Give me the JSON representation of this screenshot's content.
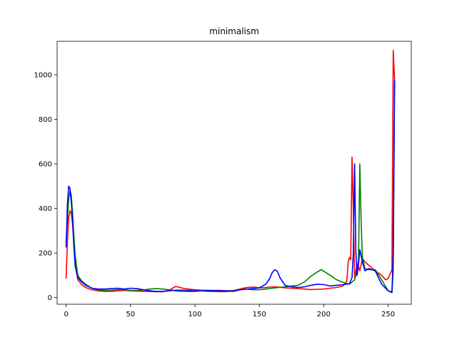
{
  "chart_data": {
    "type": "line",
    "title": "minimalism",
    "xlabel": "",
    "ylabel": "",
    "xlim": [
      -7,
      268
    ],
    "ylim": [
      -30,
      1150
    ],
    "xticks": [
      0,
      50,
      100,
      150,
      200,
      250
    ],
    "yticks": [
      0,
      200,
      400,
      600,
      800,
      1000
    ],
    "grid": false,
    "legend": "none",
    "series": [
      {
        "color": "#ff0000",
        "points": [
          [
            0,
            85
          ],
          [
            1,
            250
          ],
          [
            2,
            360
          ],
          [
            3,
            390
          ],
          [
            4,
            380
          ],
          [
            5,
            330
          ],
          [
            6,
            250
          ],
          [
            7,
            150
          ],
          [
            9,
            80
          ],
          [
            12,
            58
          ],
          [
            15,
            45
          ],
          [
            20,
            35
          ],
          [
            25,
            30
          ],
          [
            30,
            28
          ],
          [
            35,
            28
          ],
          [
            40,
            30
          ],
          [
            45,
            32
          ],
          [
            50,
            30
          ],
          [
            55,
            29
          ],
          [
            60,
            28
          ],
          [
            65,
            27
          ],
          [
            70,
            26
          ],
          [
            75,
            26
          ],
          [
            80,
            33
          ],
          [
            85,
            50
          ],
          [
            88,
            46
          ],
          [
            92,
            40
          ],
          [
            95,
            38
          ],
          [
            100,
            35
          ],
          [
            105,
            33
          ],
          [
            110,
            32
          ],
          [
            115,
            32
          ],
          [
            120,
            32
          ],
          [
            125,
            30
          ],
          [
            130,
            32
          ],
          [
            135,
            38
          ],
          [
            140,
            45
          ],
          [
            145,
            47
          ],
          [
            150,
            44
          ],
          [
            155,
            45
          ],
          [
            160,
            48
          ],
          [
            165,
            47
          ],
          [
            170,
            44
          ],
          [
            175,
            42
          ],
          [
            180,
            40
          ],
          [
            185,
            38
          ],
          [
            190,
            36
          ],
          [
            195,
            37
          ],
          [
            200,
            38
          ],
          [
            205,
            42
          ],
          [
            210,
            45
          ],
          [
            215,
            52
          ],
          [
            218,
            75
          ],
          [
            219,
            160
          ],
          [
            220,
            180
          ],
          [
            221,
            170
          ],
          [
            222,
            630
          ],
          [
            223,
            400
          ],
          [
            224,
            90
          ],
          [
            225,
            120
          ],
          [
            226,
            150
          ],
          [
            227,
            140
          ],
          [
            228,
            120
          ],
          [
            230,
            175
          ],
          [
            232,
            160
          ],
          [
            235,
            145
          ],
          [
            240,
            120
          ],
          [
            245,
            100
          ],
          [
            248,
            80
          ],
          [
            250,
            85
          ],
          [
            252,
            110
          ],
          [
            253,
            128
          ],
          [
            254,
            1110
          ],
          [
            255,
            980
          ]
        ]
      },
      {
        "color": "#008000",
        "points": [
          [
            0,
            250
          ],
          [
            1,
            350
          ],
          [
            2,
            440
          ],
          [
            3,
            480
          ],
          [
            4,
            460
          ],
          [
            5,
            380
          ],
          [
            6,
            280
          ],
          [
            7,
            190
          ],
          [
            9,
            100
          ],
          [
            12,
            75
          ],
          [
            15,
            60
          ],
          [
            20,
            42
          ],
          [
            25,
            34
          ],
          [
            30,
            32
          ],
          [
            35,
            33
          ],
          [
            40,
            36
          ],
          [
            45,
            35
          ],
          [
            50,
            32
          ],
          [
            55,
            32
          ],
          [
            60,
            34
          ],
          [
            65,
            38
          ],
          [
            70,
            40
          ],
          [
            75,
            38
          ],
          [
            80,
            35
          ],
          [
            85,
            30
          ],
          [
            90,
            28
          ],
          [
            95,
            27
          ],
          [
            100,
            28
          ],
          [
            105,
            30
          ],
          [
            110,
            28
          ],
          [
            115,
            27
          ],
          [
            120,
            26
          ],
          [
            125,
            27
          ],
          [
            130,
            30
          ],
          [
            135,
            35
          ],
          [
            140,
            38
          ],
          [
            145,
            35
          ],
          [
            150,
            35
          ],
          [
            155,
            38
          ],
          [
            160,
            42
          ],
          [
            165,
            45
          ],
          [
            170,
            48
          ],
          [
            175,
            52
          ],
          [
            180,
            55
          ],
          [
            185,
            70
          ],
          [
            190,
            95
          ],
          [
            195,
            115
          ],
          [
            198,
            125
          ],
          [
            200,
            118
          ],
          [
            205,
            100
          ],
          [
            210,
            80
          ],
          [
            215,
            68
          ],
          [
            220,
            60
          ],
          [
            224,
            80
          ],
          [
            226,
            120
          ],
          [
            227,
            170
          ],
          [
            228,
            600
          ],
          [
            229,
            350
          ],
          [
            230,
            180
          ],
          [
            232,
            130
          ],
          [
            235,
            125
          ],
          [
            240,
            125
          ],
          [
            245,
            80
          ],
          [
            250,
            30
          ],
          [
            253,
            25
          ],
          [
            254,
            120
          ],
          [
            255,
            970
          ]
        ]
      },
      {
        "color": "#0000ff",
        "points": [
          [
            0,
            225
          ],
          [
            1,
            420
          ],
          [
            2,
            500
          ],
          [
            3,
            490
          ],
          [
            4,
            430
          ],
          [
            5,
            350
          ],
          [
            6,
            230
          ],
          [
            7,
            140
          ],
          [
            9,
            90
          ],
          [
            12,
            70
          ],
          [
            15,
            55
          ],
          [
            20,
            42
          ],
          [
            25,
            38
          ],
          [
            30,
            38
          ],
          [
            35,
            40
          ],
          [
            40,
            42
          ],
          [
            45,
            38
          ],
          [
            50,
            42
          ],
          [
            55,
            40
          ],
          [
            60,
            35
          ],
          [
            65,
            30
          ],
          [
            70,
            28
          ],
          [
            75,
            28
          ],
          [
            80,
            30
          ],
          [
            85,
            33
          ],
          [
            90,
            33
          ],
          [
            95,
            32
          ],
          [
            100,
            30
          ],
          [
            105,
            30
          ],
          [
            110,
            32
          ],
          [
            115,
            30
          ],
          [
            120,
            30
          ],
          [
            125,
            30
          ],
          [
            130,
            28
          ],
          [
            135,
            35
          ],
          [
            140,
            38
          ],
          [
            145,
            40
          ],
          [
            150,
            44
          ],
          [
            155,
            60
          ],
          [
            158,
            85
          ],
          [
            160,
            112
          ],
          [
            162,
            125
          ],
          [
            164,
            118
          ],
          [
            166,
            90
          ],
          [
            170,
            55
          ],
          [
            175,
            48
          ],
          [
            180,
            45
          ],
          [
            185,
            48
          ],
          [
            190,
            55
          ],
          [
            195,
            60
          ],
          [
            200,
            58
          ],
          [
            205,
            52
          ],
          [
            210,
            55
          ],
          [
            215,
            58
          ],
          [
            220,
            62
          ],
          [
            222,
            90
          ],
          [
            223,
            200
          ],
          [
            224,
            600
          ],
          [
            225,
            200
          ],
          [
            226,
            100
          ],
          [
            227,
            150
          ],
          [
            228,
            215
          ],
          [
            230,
            160
          ],
          [
            232,
            120
          ],
          [
            235,
            130
          ],
          [
            240,
            120
          ],
          [
            245,
            60
          ],
          [
            250,
            30
          ],
          [
            253,
            22
          ],
          [
            254,
            200
          ],
          [
            255,
            980
          ]
        ]
      }
    ]
  }
}
